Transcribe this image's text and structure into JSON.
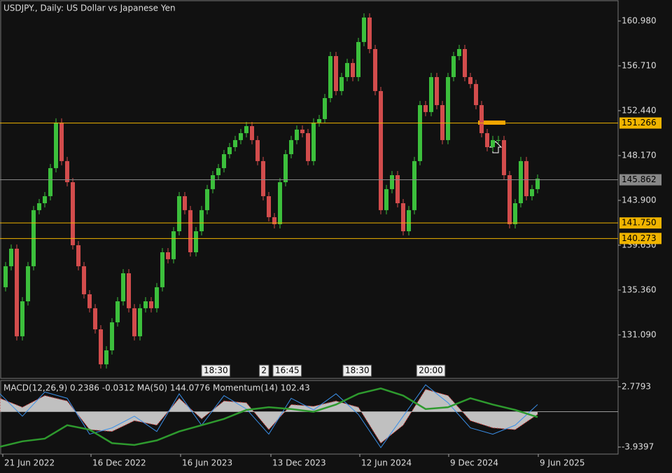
{
  "chart_data": [
    {
      "type": "candlestick",
      "title": "USDJPY., Daily:  US Dollar vs Japanese Yen",
      "x": [
        0,
        1,
        2,
        3,
        4,
        5,
        6,
        7,
        8,
        9,
        10,
        11,
        12,
        13,
        14,
        15,
        16,
        17,
        18,
        19,
        20,
        21,
        22,
        23,
        24,
        25,
        26,
        27,
        28,
        29,
        30,
        31,
        32,
        33,
        34,
        35,
        36,
        37,
        38,
        39,
        40,
        41,
        42,
        43,
        44,
        45,
        46,
        47,
        48,
        49,
        50,
        51,
        52,
        53,
        54,
        55,
        56,
        57,
        58,
        59,
        60,
        61,
        62,
        63,
        64,
        65,
        66,
        67,
        68,
        69,
        70,
        71,
        72,
        73,
        74,
        75,
        76,
        77,
        78,
        79,
        80,
        81,
        82,
        83,
        84,
        85,
        86,
        87,
        88,
        89,
        90,
        91,
        92,
        93,
        94,
        95,
        96
      ],
      "values": [
        135.63,
        137.63,
        139.3,
        130.96,
        134.29,
        137.63,
        142.97,
        143.63,
        144.3,
        146.97,
        151.31,
        147.64,
        145.63,
        139.63,
        137.63,
        134.96,
        133.63,
        131.62,
        128.29,
        129.62,
        132.29,
        134.29,
        136.96,
        133.63,
        130.96,
        133.63,
        134.29,
        133.63,
        135.63,
        138.96,
        138.3,
        140.96,
        144.3,
        142.97,
        138.96,
        140.96,
        142.97,
        144.97,
        146.3,
        146.97,
        148.3,
        148.97,
        149.64,
        150.3,
        150.97,
        149.64,
        147.64,
        144.3,
        142.3,
        141.63,
        145.63,
        148.3,
        149.64,
        150.64,
        150.3,
        147.64,
        151.31,
        151.64,
        153.64,
        157.64,
        154.31,
        155.64,
        156.98,
        155.64,
        158.98,
        161.31,
        158.31,
        154.31,
        142.97,
        144.97,
        146.3,
        143.63,
        140.96,
        142.97,
        147.64,
        152.97,
        152.31,
        155.64,
        152.97,
        149.64,
        155.64,
        157.64,
        158.31,
        155.64,
        154.98,
        152.97,
        150.3,
        148.97,
        149.64,
        149.64,
        146.3,
        141.63,
        143.63,
        147.64,
        144.3,
        144.97,
        145.97
      ],
      "up_color": "#3cbf3c",
      "down_color": "#d24c4c",
      "xlim": [
        0,
        110.375
      ],
      "ylim": [
        126.95,
        162.98
      ],
      "yticks": [
        {
          "value": 160.98,
          "label": "160.980"
        },
        {
          "value": 156.71,
          "label": "156.710"
        },
        {
          "value": 152.44,
          "label": "152.440"
        },
        {
          "value": 148.17,
          "label": "148.170"
        },
        {
          "value": 143.9,
          "label": "143.900"
        },
        {
          "value": 139.63,
          "label": "139.630"
        },
        {
          "value": 135.36,
          "label": "135.360"
        },
        {
          "value": 131.09,
          "label": "131.090"
        }
      ],
      "levels": [
        151.266,
        {
          "value": 141.75,
          "label": "141.750"
        },
        140.273
      ],
      "level_color": "#f0b400",
      "current_price": 145.862,
      "events": [
        {
          "x": 36,
          "label": "18:30"
        },
        {
          "x": 46.3,
          "label": "2"
        },
        {
          "x": 48.75,
          "label": "16:45"
        },
        {
          "x": 61.25,
          "label": "18:30"
        },
        {
          "x": 74.4,
          "label": "20:00"
        }
      ]
    },
    {
      "type": "macd",
      "label": "MACD(12,26,9) 0.2386 -0.0312 MA(50) 144.0776 Momentum(14) 102.43",
      "x": [
        0,
        4,
        8,
        12,
        16,
        20,
        24,
        28,
        32,
        36,
        40,
        44,
        48,
        52,
        56,
        60,
        64,
        68,
        72,
        76,
        80,
        84,
        88,
        92,
        96
      ],
      "histogram": [
        1.5,
        0.5,
        1.8,
        1.2,
        -2.0,
        -2.2,
        -1.0,
        -1.5,
        1.5,
        -0.8,
        1.2,
        1.0,
        -2.0,
        0.8,
        0.6,
        1.2,
        0.5,
        -3.5,
        -1.5,
        2.5,
        1.8,
        -1.0,
        -1.8,
        -2.0,
        -0.3
      ],
      "ma": [
        -3.9,
        -3.3,
        -3.0,
        -1.5,
        -2.0,
        -3.5,
        -3.7,
        -3.2,
        -2.2,
        -1.5,
        -0.8,
        0.2,
        0.5,
        0.3,
        0.0,
        0.8,
        2.0,
        2.6,
        1.8,
        0.3,
        0.5,
        1.5,
        0.8,
        0.2,
        -0.6
      ],
      "momentum": [
        2.0,
        -0.5,
        2.2,
        1.5,
        -2.5,
        -1.8,
        -0.5,
        -2.2,
        2.0,
        -1.5,
        1.8,
        0.3,
        -2.5,
        1.5,
        0.2,
        2.0,
        -0.3,
        -4.0,
        -0.5,
        3.0,
        1.0,
        -1.8,
        -2.5,
        -1.5,
        0.8
      ],
      "histogram_color": "#c0c0c0",
      "ma_color": "#2e9a2e",
      "momentum_color": "#3a8fe8",
      "xlim": [
        0,
        110.375
      ],
      "ylim": [
        -4.72,
        3.48
      ],
      "yticks": [
        2.7793,
        -3.9397
      ],
      "xticks": [
        {
          "value": 0.5,
          "label": "21 Jun 2022"
        },
        {
          "value": 16.25,
          "label": "16 Dec 2022"
        },
        {
          "value": 32.25,
          "label": "16 Jun 2023"
        },
        {
          "value": 48.375,
          "label": "13 Dec 2023"
        },
        {
          "value": 64.25,
          "label": "12 Jun 2024"
        },
        {
          "value": 80.125,
          "label": "9 Dec 2024"
        },
        {
          "value": 96.125,
          "label": "9 Jun 2025"
        }
      ]
    }
  ]
}
